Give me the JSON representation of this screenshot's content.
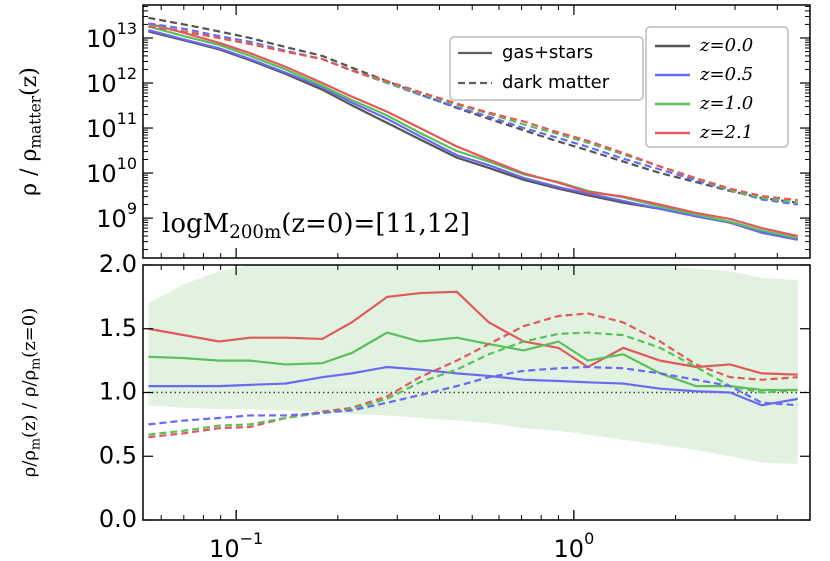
{
  "chart_data": [
    {
      "type": "line",
      "log": true,
      "ylabel": [
        {
          "t": "ρ / ρ"
        },
        {
          "sub": "matter"
        },
        {
          "t": "(z)"
        }
      ],
      "annotation": [
        {
          "t": "log"
        },
        {
          "t": "M"
        },
        {
          "sub": "200m"
        },
        {
          "t": "(z=0)=[11,12]"
        }
      ],
      "xlim": [
        0.053,
        5
      ],
      "ylim": [
        130000000,
        54000000000000
      ],
      "yticks": [
        {
          "value": 1000000000,
          "label": "10",
          "exponent": "9"
        },
        {
          "value": 10000000000,
          "label": "10",
          "exponent": "10"
        },
        {
          "value": 100000000000,
          "label": "10",
          "exponent": "11"
        },
        {
          "value": 1000000000000,
          "label": "10",
          "exponent": "12"
        },
        {
          "value": 10000000000000,
          "label": "10",
          "exponent": "13"
        }
      ],
      "x": [
        0.055,
        0.07,
        0.089,
        0.11,
        0.14,
        0.18,
        0.22,
        0.28,
        0.35,
        0.45,
        0.56,
        0.71,
        0.9,
        1.1,
        1.4,
        1.8,
        2.3,
        2.9,
        3.6,
        4.6
      ],
      "style_legend": [
        {
          "label": "gas+stars",
          "dashed": false,
          "color": "#606060"
        },
        {
          "label": "dark matter",
          "dashed": true,
          "color": "#606060"
        }
      ],
      "redshift_legend": [
        {
          "label": "z=0.0",
          "color": "#555555"
        },
        {
          "label": "z=0.5",
          "color": "#6a6af0"
        },
        {
          "label": "z=1.0",
          "color": "#5cbf5c"
        },
        {
          "label": "z=2.1",
          "color": "#e05a5a"
        }
      ],
      "series": [
        {
          "color": "#555555",
          "dashed": false,
          "values": [
            14000000000000,
            8900000000000,
            5600000000000,
            3200000000000,
            1600000000000,
            710000000000,
            320000000000,
            130000000000,
            56000000000,
            22000000000,
            13000000000,
            7100000000,
            4500000000,
            3200000000,
            2200000000,
            1600000000,
            1100000000,
            790000000,
            520000000,
            350000000
          ]
        },
        {
          "color": "#6a6af0",
          "dashed": false,
          "values": [
            15000000000000,
            9300000000000,
            5900000000000,
            3400000000000,
            1700000000000,
            800000000000,
            370000000000,
            160000000000,
            66000000000,
            25000000000,
            15000000000,
            7800000000,
            4900000000,
            3500000000,
            2400000000,
            1600000000,
            1100000000,
            790000000,
            470000000,
            330000000
          ]
        },
        {
          "color": "#5cbf5c",
          "dashed": false,
          "values": [
            18000000000000,
            11000000000000,
            7000000000000,
            4000000000000,
            2000000000000,
            870000000000,
            420000000000,
            190000000000,
            78000000000,
            31000000000,
            18000000000,
            9400000000,
            6300000000,
            4000000000,
            2900000000,
            1800000000,
            1200000000,
            830000000,
            530000000,
            360000000
          ]
        },
        {
          "color": "#e05a5a",
          "dashed": false,
          "values": [
            21000000000000,
            13000000000000,
            7800000000000,
            4600000000000,
            2300000000000,
            1000000000000,
            500000000000,
            230000000000,
            100000000000,
            39000000000,
            20000000000,
            9900000000,
            6100000000,
            3800000000,
            3000000000,
            2000000000,
            1300000000,
            960000000,
            600000000,
            400000000
          ]
        },
        {
          "color": "#555555",
          "dashed": true,
          "values": [
            28000000000000,
            20000000000000,
            14000000000000,
            10000000000000,
            6300000000000,
            4000000000000,
            2200000000000,
            1100000000000,
            560000000000,
            280000000000,
            160000000000,
            89000000000,
            50000000000,
            32000000000,
            18000000000,
            10000000000,
            6300000000,
            4000000000,
            2800000000,
            2200000000
          ]
        },
        {
          "color": "#6a6af0",
          "dashed": true,
          "values": [
            21000000000000,
            16000000000000,
            11000000000000,
            8200000000000,
            5200000000000,
            3400000000000,
            1900000000000,
            1000000000000,
            550000000000,
            290000000000,
            180000000000,
            100000000000,
            60000000000,
            38000000000,
            21000000000,
            12000000000,
            6900000000,
            4200000000,
            2600000000,
            2000000000
          ]
        },
        {
          "color": "#5cbf5c",
          "dashed": true,
          "values": [
            19000000000000,
            14000000000000,
            10000000000000,
            7500000000000,
            5000000000000,
            3400000000000,
            1900000000000,
            1000000000000,
            600000000000,
            330000000000,
            210000000000,
            120000000000,
            73000000000,
            47000000000,
            26000000000,
            14000000000,
            7600000000,
            4200000000,
            2800000000,
            2200000000
          ]
        },
        {
          "color": "#e05a5a",
          "dashed": true,
          "values": [
            18000000000000,
            14000000000000,
            10000000000000,
            7300000000000,
            5000000000000,
            3400000000000,
            1900000000000,
            1100000000000,
            630000000000,
            350000000000,
            220000000000,
            140000000000,
            80000000000,
            52000000000,
            28000000000,
            14000000000,
            7700000000,
            4500000000,
            3100000000,
            2500000000
          ]
        }
      ]
    },
    {
      "type": "line",
      "log": false,
      "ylabel": [
        {
          "t": "ρ/ρ"
        },
        {
          "sub": "m"
        },
        {
          "t": "(z) / ρ/ρ"
        },
        {
          "sub": "m"
        },
        {
          "t": "(z=0)"
        }
      ],
      "xlim": [
        0.053,
        5
      ],
      "ylim": [
        0,
        2
      ],
      "yticks": [
        {
          "value": 0,
          "label": "0.0"
        },
        0.5,
        {
          "value": 1,
          "label": "1.0"
        },
        1.5,
        {
          "value": 2,
          "label": "2.0"
        }
      ],
      "xticks": [
        {
          "value": 0.1,
          "label": "10",
          "exponent": "−1"
        },
        {
          "value": 1,
          "label": "10",
          "exponent": "0"
        }
      ],
      "reference": 1.0,
      "x": [
        0.055,
        0.07,
        0.089,
        0.11,
        0.14,
        0.18,
        0.22,
        0.28,
        0.35,
        0.45,
        0.56,
        0.71,
        0.9,
        1.1,
        1.4,
        1.8,
        2.3,
        2.9,
        3.6,
        4.6
      ],
      "band": {
        "color": "#d9efd9",
        "lower": [
          0.9,
          0.88,
          0.87,
          0.87,
          0.86,
          0.85,
          0.83,
          0.82,
          0.8,
          0.78,
          0.76,
          0.72,
          0.7,
          0.67,
          0.63,
          0.59,
          0.55,
          0.5,
          0.45,
          0.44
        ],
        "upper": [
          1.7,
          1.85,
          1.95,
          2.0,
          2.0,
          2.0,
          2.0,
          2.0,
          2.0,
          2.0,
          2.0,
          2.0,
          2.0,
          2.0,
          2.0,
          2.0,
          1.97,
          1.95,
          1.9,
          1.88
        ]
      },
      "series": [
        {
          "color": "#e05a5a",
          "dashed": false,
          "values": [
            1.5,
            1.45,
            1.4,
            1.43,
            1.43,
            1.42,
            1.55,
            1.75,
            1.78,
            1.79,
            1.55,
            1.4,
            1.35,
            1.2,
            1.35,
            1.25,
            1.2,
            1.22,
            1.15,
            1.14
          ]
        },
        {
          "color": "#5cbf5c",
          "dashed": false,
          "values": [
            1.28,
            1.27,
            1.25,
            1.25,
            1.22,
            1.23,
            1.31,
            1.47,
            1.4,
            1.43,
            1.38,
            1.33,
            1.4,
            1.25,
            1.3,
            1.15,
            1.05,
            1.05,
            1.02,
            1.02
          ]
        },
        {
          "color": "#6a6af0",
          "dashed": false,
          "values": [
            1.05,
            1.05,
            1.05,
            1.06,
            1.07,
            1.12,
            1.15,
            1.2,
            1.18,
            1.15,
            1.13,
            1.1,
            1.09,
            1.08,
            1.07,
            1.03,
            1.01,
            1.0,
            0.9,
            0.95
          ]
        },
        {
          "color": "#e05a5a",
          "dashed": true,
          "values": [
            0.65,
            0.68,
            0.72,
            0.73,
            0.8,
            0.85,
            0.88,
            0.97,
            1.12,
            1.25,
            1.38,
            1.52,
            1.6,
            1.62,
            1.55,
            1.4,
            1.22,
            1.12,
            1.1,
            1.12
          ]
        },
        {
          "color": "#5cbf5c",
          "dashed": true,
          "values": [
            0.67,
            0.7,
            0.74,
            0.75,
            0.8,
            0.84,
            0.87,
            0.95,
            1.08,
            1.18,
            1.3,
            1.4,
            1.46,
            1.47,
            1.45,
            1.35,
            1.2,
            1.05,
            1.0,
            1.02
          ]
        },
        {
          "color": "#6a6af0",
          "dashed": true,
          "values": [
            0.75,
            0.78,
            0.8,
            0.82,
            0.82,
            0.84,
            0.86,
            0.92,
            0.98,
            1.05,
            1.12,
            1.17,
            1.19,
            1.2,
            1.19,
            1.15,
            1.1,
            1.05,
            0.92,
            0.9
          ]
        }
      ]
    }
  ]
}
